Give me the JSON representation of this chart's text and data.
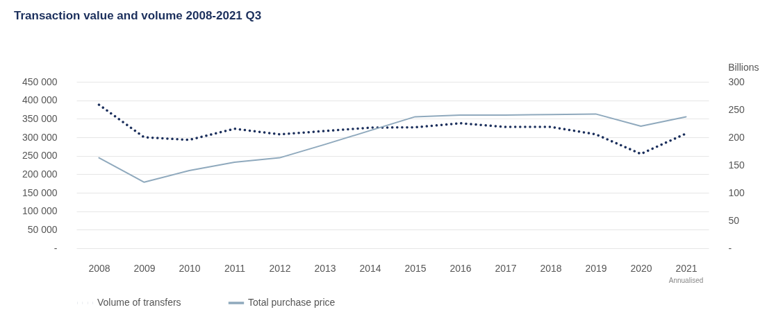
{
  "chart_data": {
    "type": "line",
    "title": "Transaction value and volume 2008-2021 Q3",
    "y2label": "Billions",
    "annotations": [
      "Annualised"
    ],
    "categories": [
      "2008",
      "2009",
      "2010",
      "2011",
      "2012",
      "2013",
      "2014",
      "2015",
      "2016",
      "2017",
      "2018",
      "2019",
      "2020",
      "2021"
    ],
    "series": [
      {
        "name": "Volume of transfers",
        "color": "#1b2f5c",
        "line_style": "dotted",
        "values": [
          388000,
          300000,
          293000,
          323000,
          308000,
          317000,
          326000,
          327000,
          338000,
          328000,
          328000,
          308000,
          255000,
          310000
        ]
      },
      {
        "name": "Total purchase price",
        "color": "#8fa9bd",
        "line_style": "solid",
        "axis": "y2",
        "values": [
          163,
          119,
          140,
          155,
          163,
          187,
          212,
          237,
          240,
          240,
          241,
          242,
          220,
          237
        ]
      }
    ],
    "ylim": [
      0,
      450000
    ],
    "yticks": [
      {
        "value": 0,
        "label": "-"
      },
      {
        "value": 50000,
        "label": "50 000"
      },
      {
        "value": 100000,
        "label": "100 000"
      },
      {
        "value": 150000,
        "label": "150 000"
      },
      {
        "value": 200000,
        "label": "200 000"
      },
      {
        "value": 250000,
        "label": "250 000"
      },
      {
        "value": 300000,
        "label": "300 000"
      },
      {
        "value": 350000,
        "label": "350 000"
      },
      {
        "value": 400000,
        "label": "400 000"
      },
      {
        "value": 450000,
        "label": "450 000"
      }
    ],
    "y2lim": [
      0,
      300
    ],
    "y2ticks": [
      {
        "value": 0,
        "label": "-"
      },
      50,
      100,
      150,
      200,
      250,
      300
    ],
    "grid": "y",
    "legend": "bottom",
    "marker": "none"
  }
}
